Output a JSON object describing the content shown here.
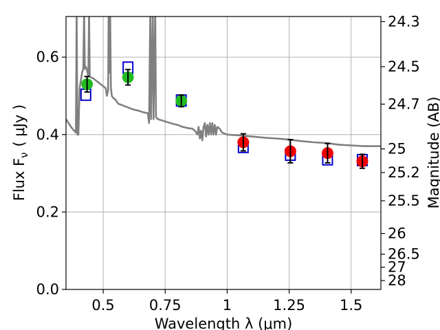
{
  "chart_data": {
    "type": "scatter",
    "xlabel": "Wavelength  λ (μm)",
    "ylabel": "Flux  F",
    "ylabel_sub": "ν",
    "ylabel_unit": "( μJy )",
    "y2label": "Magnitude (AB)",
    "xlim": [
      0.35,
      1.62
    ],
    "ylim": [
      0.0,
      0.705
    ],
    "grid": true,
    "x_ticks": [
      {
        "value": 0.5,
        "label": "0.5"
      },
      {
        "value": 0.75,
        "label": "0.75"
      },
      {
        "value": 1.0,
        "label": "1"
      },
      {
        "value": 1.25,
        "label": "1.25"
      },
      {
        "value": 1.5,
        "label": "1.5"
      }
    ],
    "y_ticks": [
      {
        "value": 0.0,
        "label": "0.0"
      },
      {
        "value": 0.2,
        "label": "0.2"
      },
      {
        "value": 0.4,
        "label": "0.4"
      },
      {
        "value": 0.6,
        "label": "0.6"
      }
    ],
    "y2_ticks": [
      {
        "value": 24.3,
        "label": "24.3"
      },
      {
        "value": 24.5,
        "label": "24.5"
      },
      {
        "value": 24.7,
        "label": "24.7"
      },
      {
        "value": 25.0,
        "label": "25"
      },
      {
        "value": 25.2,
        "label": "25.2"
      },
      {
        "value": 25.5,
        "label": "25.5"
      },
      {
        "value": 26.0,
        "label": "26"
      },
      {
        "value": 26.5,
        "label": "26.5"
      },
      {
        "value": 27.0,
        "label": "27"
      },
      {
        "value": 28.0,
        "label": "28"
      }
    ],
    "colors": {
      "spectrum": "#808080",
      "model_box": "#0000cc",
      "green_point": "#22bb22",
      "red_point": "#ee0000",
      "errorbar": "#000000"
    },
    "spectrum": [
      [
        0.35,
        0.44
      ],
      [
        0.36,
        0.43
      ],
      [
        0.37,
        0.42
      ],
      [
        0.38,
        0.412
      ],
      [
        0.39,
        0.405
      ],
      [
        0.393,
        0.72
      ],
      [
        0.396,
        0.4
      ],
      [
        0.4,
        0.4
      ],
      [
        0.405,
        0.52
      ],
      [
        0.41,
        0.54
      ],
      [
        0.415,
        0.56
      ],
      [
        0.42,
        0.57
      ],
      [
        0.423,
        0.72
      ],
      [
        0.426,
        0.57
      ],
      [
        0.43,
        0.575
      ],
      [
        0.435,
        0.565
      ],
      [
        0.44,
        0.55
      ],
      [
        0.443,
        0.72
      ],
      [
        0.446,
        0.55
      ],
      [
        0.45,
        0.548
      ],
      [
        0.46,
        0.545
      ],
      [
        0.47,
        0.54
      ],
      [
        0.48,
        0.535
      ],
      [
        0.49,
        0.53
      ],
      [
        0.5,
        0.525
      ],
      [
        0.51,
        0.52
      ],
      [
        0.515,
        0.5
      ],
      [
        0.52,
        0.515
      ],
      [
        0.522,
        0.72
      ],
      [
        0.525,
        0.56
      ],
      [
        0.528,
        0.72
      ],
      [
        0.531,
        0.52
      ],
      [
        0.535,
        0.5
      ],
      [
        0.54,
        0.495
      ],
      [
        0.55,
        0.49
      ],
      [
        0.56,
        0.48
      ],
      [
        0.58,
        0.475
      ],
      [
        0.6,
        0.47
      ],
      [
        0.62,
        0.465
      ],
      [
        0.64,
        0.462
      ],
      [
        0.66,
        0.458
      ],
      [
        0.68,
        0.455
      ],
      [
        0.685,
        0.43
      ],
      [
        0.69,
        0.72
      ],
      [
        0.693,
        0.44
      ],
      [
        0.7,
        0.72
      ],
      [
        0.703,
        0.44
      ],
      [
        0.71,
        0.72
      ],
      [
        0.713,
        0.445
      ],
      [
        0.72,
        0.44
      ],
      [
        0.74,
        0.436
      ],
      [
        0.76,
        0.432
      ],
      [
        0.78,
        0.428
      ],
      [
        0.8,
        0.425
      ],
      [
        0.82,
        0.42
      ],
      [
        0.84,
        0.417
      ],
      [
        0.86,
        0.415
      ],
      [
        0.87,
        0.41
      ],
      [
        0.88,
        0.4
      ],
      [
        0.885,
        0.42
      ],
      [
        0.89,
        0.39
      ],
      [
        0.895,
        0.41
      ],
      [
        0.9,
        0.385
      ],
      [
        0.905,
        0.42
      ],
      [
        0.91,
        0.43
      ],
      [
        0.915,
        0.395
      ],
      [
        0.92,
        0.425
      ],
      [
        0.925,
        0.4
      ],
      [
        0.93,
        0.43
      ],
      [
        0.935,
        0.4
      ],
      [
        0.94,
        0.43
      ],
      [
        0.945,
        0.4
      ],
      [
        0.95,
        0.425
      ],
      [
        0.955,
        0.4
      ],
      [
        0.96,
        0.42
      ],
      [
        0.97,
        0.415
      ],
      [
        0.98,
        0.405
      ],
      [
        1.0,
        0.4
      ],
      [
        1.05,
        0.398
      ],
      [
        1.1,
        0.395
      ],
      [
        1.15,
        0.392
      ],
      [
        1.2,
        0.39
      ],
      [
        1.25,
        0.387
      ],
      [
        1.3,
        0.383
      ],
      [
        1.35,
        0.38
      ],
      [
        1.4,
        0.378
      ],
      [
        1.45,
        0.374
      ],
      [
        1.5,
        0.372
      ],
      [
        1.55,
        0.37
      ],
      [
        1.6,
        0.37
      ],
      [
        1.62,
        0.37
      ]
    ],
    "model_points": [
      {
        "x": 0.43,
        "y": 0.503
      },
      {
        "x": 0.6,
        "y": 0.573
      },
      {
        "x": 0.815,
        "y": 0.488
      },
      {
        "x": 1.065,
        "y": 0.368
      },
      {
        "x": 1.255,
        "y": 0.348
      },
      {
        "x": 1.405,
        "y": 0.336
      },
      {
        "x": 1.545,
        "y": 0.334
      }
    ],
    "observed_points": [
      {
        "x": 0.435,
        "y": 0.53,
        "err": 0.02,
        "color": "green"
      },
      {
        "x": 0.6,
        "y": 0.548,
        "err": 0.02,
        "color": "green"
      },
      {
        "x": 0.815,
        "y": 0.487,
        "err": 0.015,
        "color": "green"
      },
      {
        "x": 1.065,
        "y": 0.38,
        "err": 0.022,
        "color": "red"
      },
      {
        "x": 1.255,
        "y": 0.357,
        "err": 0.03,
        "color": "red"
      },
      {
        "x": 1.405,
        "y": 0.352,
        "err": 0.025,
        "color": "red"
      },
      {
        "x": 1.545,
        "y": 0.331,
        "err": 0.018,
        "color": "red"
      }
    ]
  }
}
